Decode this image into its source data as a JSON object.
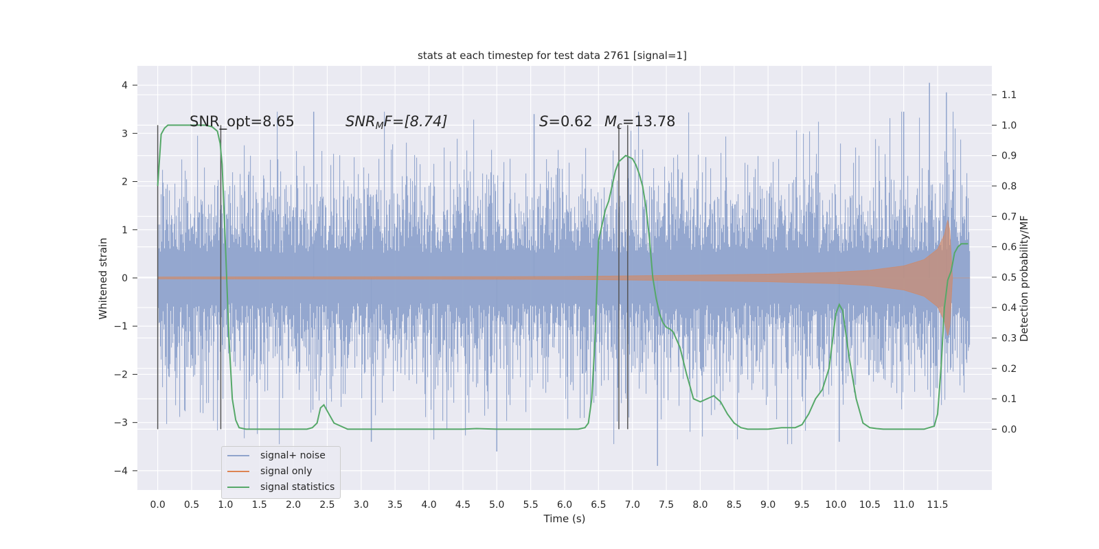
{
  "chart_data": {
    "type": "line",
    "title": "stats at each timestep for test data 2761 [signal=1]",
    "xlabel": "Time (s)",
    "ylabel": "Whitened strain",
    "y2label": "Detection probability/MF",
    "xlim": [
      -0.3,
      12.3
    ],
    "ylim": [
      -4.4,
      4.4
    ],
    "y2lim": [
      -0.2,
      1.195
    ],
    "x_ticks": [
      "0.0",
      "0.5",
      "1.0",
      "1.5",
      "2.0",
      "2.5",
      "3.0",
      "3.5",
      "4.0",
      "4.5",
      "5.0",
      "5.5",
      "6.0",
      "6.5",
      "7.0",
      "7.5",
      "8.0",
      "8.5",
      "9.0",
      "9.5",
      "10.0",
      "10.5",
      "11.0",
      "11.5"
    ],
    "y_ticks": [
      "4",
      "3",
      "2",
      "1",
      "0",
      "−1",
      "−2",
      "−3",
      "−4"
    ],
    "y2_ticks": [
      "1.1",
      "1.0",
      "0.9",
      "0.8",
      "0.7",
      "0.6",
      "0.5",
      "0.4",
      "0.3",
      "0.2",
      "0.1",
      "0.0"
    ],
    "grid": true,
    "legend_placement": "lower-left",
    "annotations": {
      "snr_opt": "SNR_opt=8.65",
      "snr_mf_base": "SNR",
      "snr_mf_sub": "M",
      "snr_mf_rest": "F=[8.74]",
      "s_italic": "S",
      "s_value": "=0.62",
      "mc_base": "M",
      "mc_sub": "c",
      "mc_value": "=13.78"
    },
    "vertical_lines_x": [
      0.0,
      0.93,
      6.8,
      6.93
    ],
    "series": [
      {
        "name": "signal+ noise",
        "color": "#8fa3cc",
        "axis": "left",
        "x_range": [
          0.0,
          11.98
        ],
        "typical_amplitude": 1.3,
        "peak_values": [
          {
            "x": 11.38,
            "y": 4.05
          },
          {
            "x": 11.63,
            "y": 3.85
          },
          {
            "x": 7.37,
            "y": -3.9
          },
          {
            "x": 5.0,
            "y": -3.6
          },
          {
            "x": 3.15,
            "y": -3.4
          },
          {
            "x": 10.05,
            "y": -3.4
          },
          {
            "x": 2.3,
            "y": 3.45
          },
          {
            "x": 11.0,
            "y": 3.45
          },
          {
            "x": 5.55,
            "y": 3.4
          }
        ]
      },
      {
        "name": "signal only",
        "color": "#dd8452",
        "axis": "left",
        "envelope_x": [
          0,
          6.0,
          8.0,
          9.0,
          10.0,
          10.5,
          11.0,
          11.3,
          11.5,
          11.6,
          11.65,
          11.68,
          11.72,
          11.98
        ],
        "envelope_y": [
          0.02,
          0.03,
          0.06,
          0.08,
          0.12,
          0.16,
          0.25,
          0.38,
          0.6,
          0.9,
          1.2,
          1.0,
          0.0,
          0.0
        ]
      },
      {
        "name": "signal statistics",
        "color": "#55a868",
        "axis": "right",
        "x": [
          0.0,
          0.05,
          0.1,
          0.15,
          0.2,
          0.3,
          0.5,
          0.7,
          0.8,
          0.88,
          0.92,
          0.95,
          1.0,
          1.05,
          1.1,
          1.15,
          1.2,
          1.3,
          1.5,
          2.0,
          2.2,
          2.28,
          2.35,
          2.4,
          2.45,
          2.5,
          2.6,
          2.8,
          3.5,
          4.5,
          4.7,
          5.0,
          6.0,
          6.2,
          6.3,
          6.35,
          6.4,
          6.45,
          6.5,
          6.6,
          6.65,
          6.7,
          6.75,
          6.8,
          6.9,
          7.0,
          7.05,
          7.1,
          7.15,
          7.2,
          7.25,
          7.3,
          7.35,
          7.4,
          7.45,
          7.5,
          7.55,
          7.6,
          7.7,
          7.8,
          7.85,
          7.9,
          8.0,
          8.1,
          8.2,
          8.3,
          8.4,
          8.5,
          8.6,
          8.7,
          8.8,
          9.0,
          9.2,
          9.3,
          9.4,
          9.5,
          9.6,
          9.7,
          9.8,
          9.9,
          10.0,
          10.05,
          10.1,
          10.2,
          10.3,
          10.4,
          10.5,
          10.6,
          10.7,
          11.0,
          11.3,
          11.45,
          11.5,
          11.55,
          11.6,
          11.65,
          11.7,
          11.75,
          11.8,
          11.85,
          11.9,
          11.95
        ],
        "y": [
          0.8,
          0.97,
          0.99,
          1.0,
          1.0,
          1.0,
          1.0,
          1.0,
          0.995,
          0.98,
          0.94,
          0.87,
          0.6,
          0.3,
          0.1,
          0.03,
          0.005,
          0.0,
          0.0,
          0.0,
          0.0,
          0.005,
          0.02,
          0.07,
          0.08,
          0.06,
          0.02,
          0.0,
          0.0,
          0.0,
          0.002,
          0.0,
          0.0,
          0.0,
          0.005,
          0.02,
          0.1,
          0.3,
          0.62,
          0.72,
          0.75,
          0.8,
          0.85,
          0.88,
          0.9,
          0.89,
          0.87,
          0.84,
          0.8,
          0.73,
          0.63,
          0.5,
          0.43,
          0.38,
          0.35,
          0.335,
          0.33,
          0.32,
          0.27,
          0.18,
          0.14,
          0.1,
          0.09,
          0.1,
          0.11,
          0.09,
          0.05,
          0.02,
          0.005,
          0.0,
          0.0,
          0.0,
          0.005,
          0.005,
          0.005,
          0.015,
          0.05,
          0.1,
          0.13,
          0.2,
          0.38,
          0.41,
          0.39,
          0.23,
          0.1,
          0.02,
          0.005,
          0.002,
          0.0,
          0.0,
          0.0,
          0.01,
          0.05,
          0.2,
          0.4,
          0.49,
          0.52,
          0.58,
          0.6,
          0.61,
          0.61,
          0.61
        ]
      }
    ]
  }
}
